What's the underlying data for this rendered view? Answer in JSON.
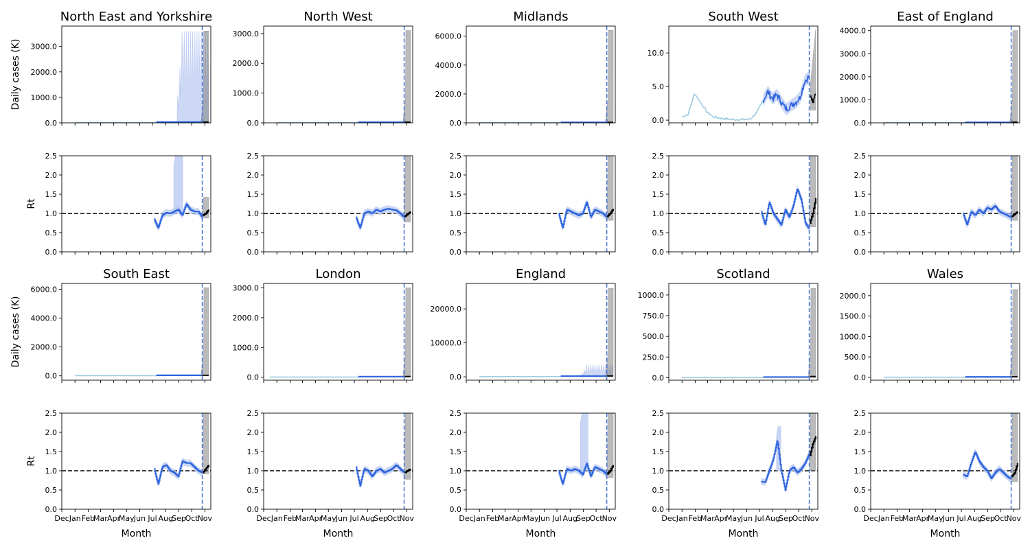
{
  "figure": {
    "month_ticks": [
      "Dec",
      "Jan",
      "Feb",
      "Mar",
      "Apr",
      "May",
      "Jun",
      "Jul",
      "Aug",
      "Sep",
      "Oct",
      "Nov"
    ],
    "xlabel": "Month",
    "ylabel_cases": "Daily cases (K)",
    "ylabel_rt": "Rt"
  },
  "colors": {
    "history": "#9ecae1",
    "estimate": "#2a62dd",
    "band": "#b8c8f2",
    "forecast": "#000000",
    "forecast_band": "#7a7a7a",
    "vline": "#4f7bd9",
    "ref": "#000000"
  },
  "chart_data": [
    {
      "type": "line",
      "region": "North East and Yorkshire",
      "title": "North East and Yorkshire",
      "xlim": [
        "2019-12-01",
        "2020-11-15"
      ],
      "forecast_start": "2020-10-26",
      "cases": {
        "ylabel": "Daily cases (K)",
        "ylim": [
          0,
          3800
        ],
        "yticks": [
          0,
          1000,
          2000,
          3000
        ],
        "peak": 30,
        "hist_start": "2020-01-01",
        "fc_end": 30,
        "fc_hi": 3600,
        "spiky_band": true,
        "band_max": 3600
      },
      "rt": {
        "ylabel": "Rt",
        "ylim": [
          0,
          2.5
        ],
        "yticks": [
          0,
          0.5,
          1.0,
          1.5,
          2.0,
          2.5
        ],
        "ref": 1.0,
        "values": [
          0.85,
          0.62,
          0.95,
          1.02,
          1.0,
          1.05,
          1.1,
          0.95,
          1.25,
          1.1,
          1.05,
          1.05,
          0.9
        ],
        "spike": {
          "from": "2020-08-20",
          "to": "2020-09-10",
          "hi": 2.5
        },
        "fc_values": [
          0.95,
          1.0,
          1.1
        ],
        "fc_hi": 1.42,
        "fc_lo": 0.88
      }
    },
    {
      "type": "line",
      "region": "North West",
      "title": "North West",
      "xlim": [
        "2019-12-01",
        "2020-11-15"
      ],
      "forecast_start": "2020-10-26",
      "cases": {
        "ylabel": "",
        "ylim": [
          0,
          3250
        ],
        "yticks": [
          0,
          1000,
          2000,
          3000
        ],
        "peak": 20,
        "hist_start": "2020-01-01",
        "fc_end": 25,
        "fc_hi": 3100,
        "spiky_band": false,
        "band_max": 0
      },
      "rt": {
        "ylabel": "",
        "ylim": [
          0,
          2.5
        ],
        "yticks": [
          0,
          0.5,
          1.0,
          1.5,
          2.0,
          2.5
        ],
        "ref": 1.0,
        "values": [
          0.9,
          0.62,
          1.0,
          1.05,
          1.0,
          1.1,
          1.05,
          1.1,
          1.12,
          1.1,
          1.08,
          1.0,
          0.9
        ],
        "spike": null,
        "fc_values": [
          0.92,
          0.98,
          1.05
        ],
        "fc_hi": 2.5,
        "fc_lo": 0.78
      }
    },
    {
      "type": "line",
      "region": "Midlands",
      "title": "Midlands",
      "xlim": [
        "2019-12-01",
        "2020-11-15"
      ],
      "forecast_start": "2020-10-26",
      "cases": {
        "ylabel": "",
        "ylim": [
          0,
          6700
        ],
        "yticks": [
          0,
          2000,
          4000,
          6000
        ],
        "peak": 30,
        "hist_start": "2020-01-01",
        "fc_end": 35,
        "fc_hi": 6400,
        "spiky_band": false,
        "band_max": 0
      },
      "rt": {
        "ylabel": "",
        "ylim": [
          0,
          2.5
        ],
        "yticks": [
          0,
          0.5,
          1.0,
          1.5,
          2.0,
          2.5
        ],
        "ref": 1.0,
        "values": [
          1.0,
          0.62,
          1.1,
          1.05,
          1.0,
          0.95,
          1.0,
          1.3,
          0.9,
          1.1,
          1.05,
          1.0,
          0.9
        ],
        "spike": null,
        "fc_values": [
          0.92,
          1.0,
          1.12
        ],
        "fc_hi": 2.5,
        "fc_lo": 0.82
      }
    },
    {
      "type": "line",
      "region": "South West",
      "title": "South West",
      "xlim": [
        "2019-12-01",
        "2020-11-15"
      ],
      "forecast_start": "2020-10-26",
      "cases": {
        "ylabel": "",
        "ylim": [
          -0.4,
          14
        ],
        "yticks": [
          0,
          5,
          10
        ],
        "hist_values": [
          0.5,
          0.9,
          4.0,
          2.6,
          1.2,
          0.5,
          0.3,
          0.2,
          0.1,
          0.1,
          0.1,
          0.2,
          1.2,
          3.0
        ],
        "est_values": [
          3.0,
          4.2,
          3.2,
          3.8,
          2.6,
          1.6,
          2.2,
          2.6,
          3.4,
          5.8,
          6.5
        ],
        "fc_values": [
          3.5,
          2.8,
          4.0
        ],
        "fc_hi": 13.5,
        "fc_lo": 1.5,
        "spiky_band": false,
        "band_max": 0
      },
      "rt": {
        "ylabel": "",
        "ylim": [
          0,
          2.5
        ],
        "yticks": [
          0,
          0.5,
          1.0,
          1.5,
          2.0,
          2.5
        ],
        "ref": 1.0,
        "values": [
          1.05,
          0.7,
          1.3,
          1.0,
          0.85,
          0.7,
          1.1,
          0.9,
          1.2,
          1.65,
          1.35,
          0.75,
          0.6
        ],
        "spike": null,
        "fc_values": [
          0.75,
          1.0,
          1.4
        ],
        "fc_hi": 2.5,
        "fc_lo": 0.65
      }
    },
    {
      "type": "line",
      "region": "East of England",
      "title": "East of England",
      "xlim": [
        "2019-12-01",
        "2020-11-15"
      ],
      "forecast_start": "2020-10-26",
      "cases": {
        "ylabel": "",
        "ylim": [
          0,
          4200
        ],
        "yticks": [
          0,
          1000,
          2000,
          3000,
          4000
        ],
        "peak": 20,
        "hist_start": "2020-01-01",
        "fc_end": 30,
        "fc_hi": 4000,
        "spiky_band": false,
        "band_max": 0
      },
      "rt": {
        "ylabel": "",
        "ylim": [
          0,
          2.5
        ],
        "yticks": [
          0,
          0.5,
          1.0,
          1.5,
          2.0,
          2.5
        ],
        "ref": 1.0,
        "values": [
          1.0,
          0.7,
          1.05,
          0.95,
          1.1,
          1.0,
          1.15,
          1.1,
          1.2,
          1.05,
          1.0,
          0.95,
          0.9
        ],
        "spike": null,
        "fc_values": [
          0.92,
          0.98,
          1.05
        ],
        "fc_hi": 2.5,
        "fc_lo": 0.82
      }
    },
    {
      "type": "line",
      "region": "South East",
      "title": "South East",
      "xlim": [
        "2019-12-01",
        "2020-11-15"
      ],
      "forecast_start": "2020-10-26",
      "cases": {
        "ylabel": "Daily cases (K)",
        "ylim": [
          -300,
          6400
        ],
        "yticks": [
          0,
          2000,
          4000,
          6000
        ],
        "peak": 40,
        "hist_start": "2020-01-01",
        "fc_end": 40,
        "fc_hi": 6100,
        "spiky_band": false,
        "band_max": 0
      },
      "rt": {
        "ylabel": "Rt",
        "ylim": [
          0,
          2.5
        ],
        "yticks": [
          0,
          0.5,
          1.0,
          1.5,
          2.0,
          2.5
        ],
        "ref": 1.0,
        "values": [
          1.05,
          0.65,
          1.1,
          1.15,
          1.0,
          0.95,
          0.85,
          1.25,
          1.2,
          1.2,
          1.1,
          1.0,
          0.95
        ],
        "spike": null,
        "fc_values": [
          0.95,
          1.05,
          1.15
        ],
        "fc_hi": 2.5,
        "fc_lo": 0.92
      }
    },
    {
      "type": "line",
      "region": "London",
      "title": "London",
      "xlim": [
        "2019-12-01",
        "2020-11-15"
      ],
      "forecast_start": "2020-10-26",
      "cases": {
        "ylabel": "",
        "ylim": [
          -100,
          3150
        ],
        "yticks": [
          0,
          1000,
          2000,
          3000
        ],
        "peak": 20,
        "hist_start": "2019-12-15",
        "fc_end": 25,
        "fc_hi": 3000,
        "spiky_band": false,
        "band_max": 0
      },
      "rt": {
        "ylabel": "",
        "ylim": [
          0,
          2.5
        ],
        "yticks": [
          0,
          0.5,
          1.0,
          1.5,
          2.0,
          2.5
        ],
        "ref": 1.0,
        "values": [
          1.1,
          0.6,
          1.05,
          1.0,
          0.85,
          1.0,
          1.05,
          0.95,
          1.0,
          1.05,
          1.15,
          1.05,
          0.95
        ],
        "spike": null,
        "fc_values": [
          0.95,
          1.0,
          1.05
        ],
        "fc_hi": 2.5,
        "fc_lo": 0.78
      }
    },
    {
      "type": "line",
      "region": "England",
      "title": "England",
      "xlim": [
        "2019-12-01",
        "2020-11-15"
      ],
      "forecast_start": "2020-10-26",
      "cases": {
        "ylabel": "",
        "ylim": [
          -1000,
          27500
        ],
        "yticks": [
          0,
          10000,
          20000
        ],
        "peak": 200,
        "hist_start": "2020-01-01",
        "fc_end": 250,
        "fc_hi": 26000,
        "spiky_band": true,
        "band_max": 3500
      },
      "rt": {
        "ylabel": "",
        "ylim": [
          0,
          2.5
        ],
        "yticks": [
          0,
          0.5,
          1.0,
          1.5,
          2.0,
          2.5
        ],
        "ref": 1.0,
        "values": [
          1.0,
          0.65,
          1.05,
          1.0,
          1.05,
          1.0,
          0.9,
          1.2,
          0.85,
          1.1,
          1.05,
          1.0,
          0.9
        ],
        "spike": {
          "from": "2020-08-25",
          "to": "2020-09-12",
          "hi": 2.5
        },
        "fc_values": [
          0.92,
          1.0,
          1.15
        ],
        "fc_hi": 2.5,
        "fc_lo": 0.82
      }
    },
    {
      "type": "line",
      "region": "Scotland",
      "title": "Scotland",
      "xlim": [
        "2019-12-01",
        "2020-11-15"
      ],
      "forecast_start": "2020-10-26",
      "cases": {
        "ylabel": "",
        "ylim": [
          -30,
          1140
        ],
        "yticks": [
          0,
          250,
          500,
          750,
          1000
        ],
        "peak": 8,
        "hist_start": "2020-01-01",
        "fc_end": 15,
        "fc_hi": 1080,
        "spiky_band": false,
        "band_max": 0
      },
      "rt": {
        "ylabel": "",
        "ylim": [
          0,
          2.5
        ],
        "yticks": [
          0,
          0.5,
          1.0,
          1.5,
          2.0,
          2.5
        ],
        "ref": 1.0,
        "values": [
          0.72,
          0.7,
          1.0,
          1.3,
          1.8,
          1.0,
          0.5,
          1.0,
          1.1,
          0.95,
          1.05,
          1.2,
          1.45
        ],
        "spike": {
          "from": "2020-08-10",
          "to": "2020-08-20",
          "hi": 2.15
        },
        "fc_values": [
          1.4,
          1.7,
          1.9
        ],
        "fc_hi": 2.5,
        "fc_lo": 1.0
      }
    },
    {
      "type": "line",
      "region": "Wales",
      "title": "Wales",
      "xlim": [
        "2019-12-01",
        "2020-11-15"
      ],
      "forecast_start": "2020-10-26",
      "cases": {
        "ylabel": "",
        "ylim": [
          -70,
          2300
        ],
        "yticks": [
          0,
          500,
          1000,
          1500,
          2000
        ],
        "peak": 10,
        "hist_start": "2020-01-01",
        "fc_end": 15,
        "fc_hi": 2150,
        "spiky_band": false,
        "band_max": 0
      },
      "rt": {
        "ylabel": "",
        "ylim": [
          0,
          2.5
        ],
        "yticks": [
          0,
          0.5,
          1.0,
          1.5,
          2.0,
          2.5
        ],
        "ref": 1.0,
        "values": [
          0.9,
          0.85,
          1.2,
          1.5,
          1.25,
          1.1,
          1.0,
          0.8,
          0.95,
          1.05,
          0.95,
          0.85,
          0.78
        ],
        "spike": null,
        "fc_values": [
          0.85,
          0.95,
          1.2
        ],
        "fc_hi": 2.5,
        "fc_lo": 0.72
      }
    }
  ]
}
